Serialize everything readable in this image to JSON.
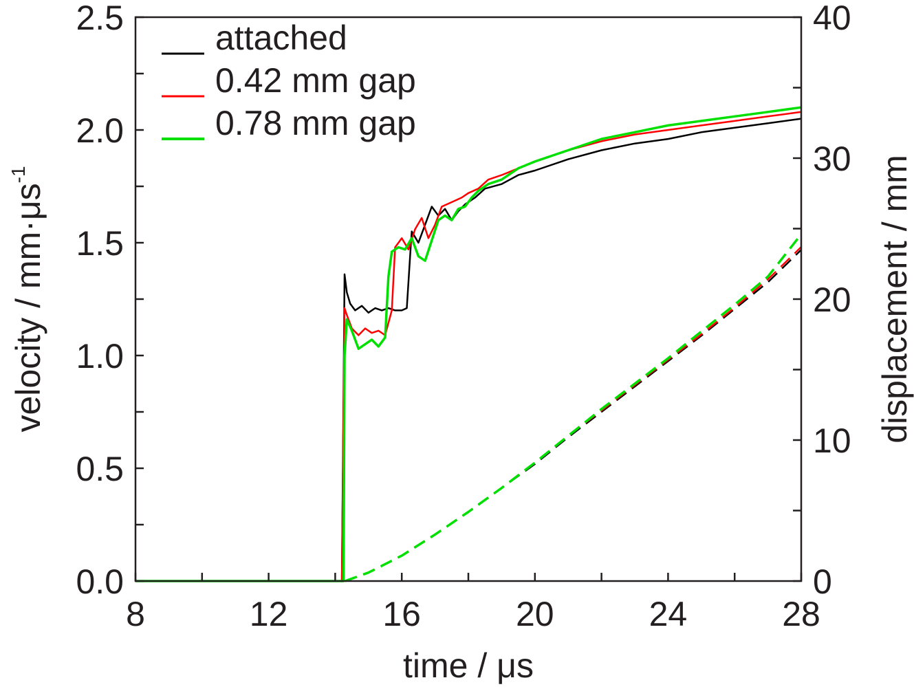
{
  "chart_data": {
    "type": "line",
    "title": "",
    "xlabel": "time / μs",
    "ylabel": "velocity / mm·μs",
    "ylabel_superscript": "-1",
    "y2label": "displacement / mm",
    "xlim": [
      8,
      28
    ],
    "ylim": [
      0,
      2.5
    ],
    "y2lim": [
      0,
      40
    ],
    "x_ticks": [
      "8",
      "12",
      "16",
      "20",
      "24",
      "28"
    ],
    "y_ticks": [
      "0.0",
      "0.5",
      "1.0",
      "1.5",
      "2.0",
      "2.5"
    ],
    "y2_ticks": [
      "0",
      "10",
      "20",
      "30",
      "40"
    ],
    "grid": false,
    "legend_position": "top-left",
    "legend": [
      {
        "label": "attached",
        "color": "#000000"
      },
      {
        "label": "0.42 mm gap",
        "color": "#ff0000"
      },
      {
        "label": "0.78 mm gap",
        "color": "#00e000"
      }
    ],
    "series": [
      {
        "name": "attached",
        "color": "#000000",
        "axis": "left",
        "style": "solid",
        "x": [
          8,
          14.2,
          14.28,
          14.35,
          14.45,
          14.6,
          14.8,
          15.0,
          15.2,
          15.4,
          15.6,
          15.8,
          16.0,
          16.15,
          16.25,
          16.3,
          16.5,
          16.7,
          16.9,
          17.1,
          17.3,
          17.5,
          17.7,
          17.9,
          18.2,
          18.5,
          19.0,
          19.5,
          20.0,
          21.0,
          22.0,
          23.0,
          24.0,
          25.0,
          26.0,
          27.0,
          28.0
        ],
        "y": [
          0,
          0,
          1.36,
          1.28,
          1.23,
          1.2,
          1.22,
          1.19,
          1.21,
          1.2,
          1.21,
          1.2,
          1.2,
          1.21,
          1.44,
          1.55,
          1.5,
          1.58,
          1.66,
          1.62,
          1.65,
          1.6,
          1.64,
          1.67,
          1.7,
          1.74,
          1.76,
          1.8,
          1.82,
          1.87,
          1.91,
          1.94,
          1.96,
          1.99,
          2.01,
          2.03,
          2.05
        ]
      },
      {
        "name": "0.42 mm gap",
        "color": "#ff0000",
        "axis": "left",
        "style": "solid",
        "x": [
          8,
          14.2,
          14.28,
          14.35,
          14.5,
          14.7,
          14.9,
          15.1,
          15.3,
          15.5,
          15.7,
          15.8,
          15.9,
          16.0,
          16.2,
          16.4,
          16.6,
          16.8,
          17.0,
          17.2,
          17.5,
          17.8,
          18.0,
          18.3,
          18.6,
          19.0,
          19.5,
          20.0,
          21.0,
          22.0,
          23.0,
          24.0,
          25.0,
          26.0,
          27.0,
          28.0
        ],
        "y": [
          0,
          0,
          1.21,
          1.18,
          1.12,
          1.09,
          1.12,
          1.1,
          1.11,
          1.09,
          1.2,
          1.48,
          1.5,
          1.52,
          1.47,
          1.56,
          1.61,
          1.52,
          1.58,
          1.66,
          1.68,
          1.7,
          1.72,
          1.74,
          1.78,
          1.8,
          1.83,
          1.86,
          1.91,
          1.95,
          1.98,
          2.0,
          2.02,
          2.04,
          2.06,
          2.08
        ]
      },
      {
        "name": "0.78 mm gap",
        "color": "#00e000",
        "axis": "left",
        "style": "solid",
        "x": [
          8,
          14.25,
          14.28,
          14.35,
          14.5,
          14.7,
          14.9,
          15.1,
          15.3,
          15.5,
          15.6,
          15.7,
          15.9,
          16.1,
          16.3,
          16.5,
          16.7,
          16.9,
          17.1,
          17.3,
          17.5,
          17.7,
          17.9,
          18.1,
          18.3,
          18.6,
          19.0,
          19.5,
          20.0,
          21.0,
          22.0,
          23.0,
          24.0,
          25.0,
          26.0,
          27.0,
          28.0
        ],
        "y": [
          0,
          0,
          1.0,
          1.16,
          1.11,
          1.03,
          1.05,
          1.07,
          1.04,
          1.08,
          1.35,
          1.46,
          1.48,
          1.47,
          1.52,
          1.44,
          1.42,
          1.51,
          1.6,
          1.62,
          1.6,
          1.65,
          1.66,
          1.7,
          1.73,
          1.76,
          1.78,
          1.83,
          1.86,
          1.91,
          1.96,
          1.99,
          2.02,
          2.04,
          2.06,
          2.08,
          2.1
        ]
      },
      {
        "name": "attached",
        "color": "#000000",
        "axis": "right",
        "style": "dashed",
        "x": [
          14.3,
          15,
          16,
          17,
          18,
          19,
          20,
          21,
          22,
          23,
          24,
          25,
          26,
          27,
          28
        ],
        "y": [
          0,
          0.6,
          1.8,
          3.3,
          4.9,
          6.6,
          8.3,
          10.2,
          12.0,
          13.8,
          15.6,
          17.4,
          19.3,
          21.2,
          23.5
        ]
      },
      {
        "name": "0.42 mm gap",
        "color": "#ff0000",
        "axis": "right",
        "style": "dashed",
        "x": [
          14.3,
          15,
          16,
          17,
          18,
          19,
          20,
          21,
          22,
          23,
          24,
          25,
          26,
          27,
          28
        ],
        "y": [
          0,
          0.6,
          1.8,
          3.3,
          4.9,
          6.6,
          8.4,
          10.3,
          12.1,
          13.9,
          15.7,
          17.5,
          19.4,
          21.4,
          23.7
        ]
      },
      {
        "name": "0.78 mm gap",
        "color": "#00e000",
        "axis": "right",
        "style": "dashed",
        "x": [
          14.3,
          15,
          16,
          17,
          18,
          19,
          20,
          21,
          22,
          23,
          24,
          25,
          26,
          27,
          28
        ],
        "y": [
          0,
          0.6,
          1.8,
          3.3,
          4.9,
          6.6,
          8.4,
          10.3,
          12.2,
          14.0,
          15.8,
          17.7,
          19.6,
          21.6,
          24.6
        ]
      }
    ]
  }
}
